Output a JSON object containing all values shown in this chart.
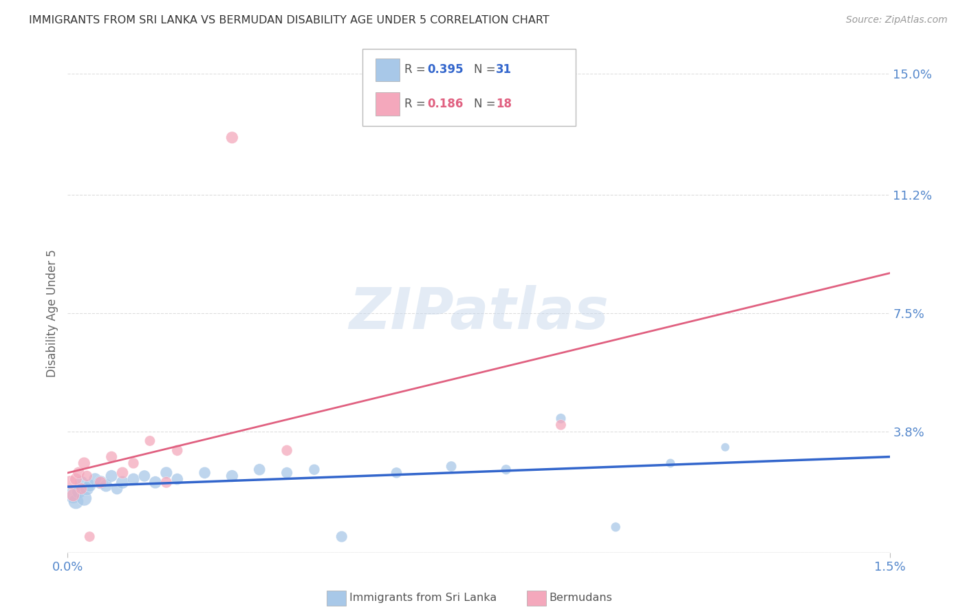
{
  "title": "IMMIGRANTS FROM SRI LANKA VS BERMUDAN DISABILITY AGE UNDER 5 CORRELATION CHART",
  "source": "Source: ZipAtlas.com",
  "ylabel": "Disability Age Under 5",
  "xlim": [
    0.0,
    0.015
  ],
  "ylim": [
    0.0,
    0.15
  ],
  "yticks": [
    0.0,
    0.038,
    0.075,
    0.112,
    0.15
  ],
  "ytick_labels": [
    "",
    "3.8%",
    "7.5%",
    "11.2%",
    "15.0%"
  ],
  "xticks": [
    0.0,
    0.015
  ],
  "xtick_labels": [
    "0.0%",
    "1.5%"
  ],
  "watermark": "ZIPatlas",
  "sri_lanka_x": [
    0.0001,
    0.00015,
    0.0002,
    0.00025,
    0.0003,
    0.00035,
    0.0004,
    0.0005,
    0.0006,
    0.0007,
    0.0008,
    0.0009,
    0.001,
    0.0012,
    0.0014,
    0.0016,
    0.0018,
    0.002,
    0.0025,
    0.003,
    0.0035,
    0.004,
    0.0045,
    0.005,
    0.006,
    0.007,
    0.008,
    0.009,
    0.01,
    0.011,
    0.012
  ],
  "sri_lanka_y": [
    0.018,
    0.016,
    0.019,
    0.022,
    0.017,
    0.02,
    0.021,
    0.023,
    0.022,
    0.021,
    0.024,
    0.02,
    0.022,
    0.023,
    0.024,
    0.022,
    0.025,
    0.023,
    0.025,
    0.024,
    0.026,
    0.025,
    0.026,
    0.005,
    0.025,
    0.027,
    0.026,
    0.042,
    0.008,
    0.028,
    0.033
  ],
  "sri_lanka_sizes": [
    300,
    250,
    200,
    180,
    250,
    200,
    180,
    170,
    200,
    180,
    160,
    150,
    180,
    160,
    150,
    170,
    160,
    150,
    150,
    160,
    150,
    140,
    130,
    140,
    130,
    120,
    110,
    110,
    100,
    90,
    80
  ],
  "bermuda_x": [
    5e-05,
    0.0001,
    0.00015,
    0.0002,
    0.00025,
    0.0003,
    0.00035,
    0.0004,
    0.0006,
    0.0008,
    0.001,
    0.0012,
    0.0015,
    0.0018,
    0.002,
    0.003,
    0.004,
    0.009
  ],
  "bermuda_y": [
    0.022,
    0.018,
    0.023,
    0.025,
    0.02,
    0.028,
    0.024,
    0.005,
    0.022,
    0.03,
    0.025,
    0.028,
    0.035,
    0.022,
    0.032,
    0.13,
    0.032,
    0.04
  ],
  "bermuda_sizes": [
    200,
    180,
    160,
    150,
    140,
    160,
    130,
    120,
    150,
    140,
    150,
    130,
    120,
    140,
    130,
    160,
    130,
    120
  ],
  "sri_lanka_color": "#a8c8e8",
  "bermuda_color": "#f4a8bc",
  "sri_lanka_line_color": "#3366cc",
  "bermuda_line_color": "#e06080",
  "background_color": "#ffffff",
  "grid_color": "#dddddd",
  "title_color": "#333333",
  "tick_color": "#5588cc",
  "source_color": "#999999",
  "leg_R_color": "#555555",
  "sri_lanka_legend_val_color": "#3366cc",
  "bermuda_legend_val_color": "#e06080"
}
